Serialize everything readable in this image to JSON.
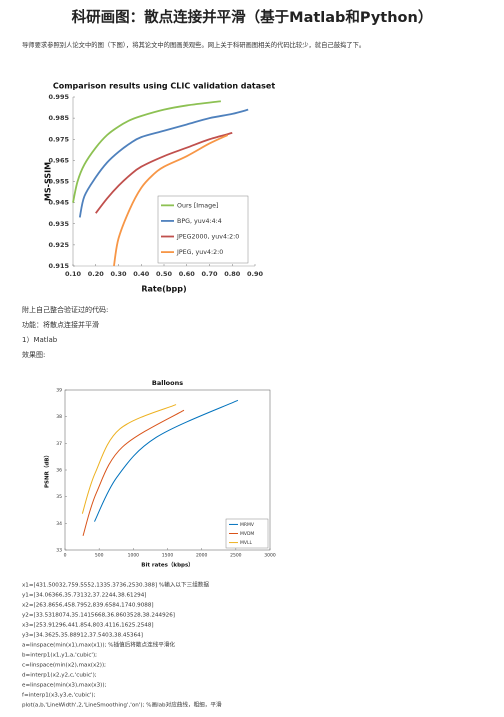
{
  "header": {
    "title": "科研画图：散点连接并平滑（基于Matlab和Python）"
  },
  "intro": "导师要求参照别人论文中的图（下图），将其论文中的图画美观些。网上关于科研画图相关的代码比较少，就自己鼓捣了下。",
  "lines": [
    "附上自己整合验证过的代码:",
    "功能：将散点连接并平滑",
    "1）Matlab",
    "效果图:"
  ],
  "code": [
    "x1=[431.50032,759.5552,1335.3736,2530.388] %输入以下三组数据",
    "y1=[34.06366,35.73132,37.2244,38.61294]",
    "x2=[263.8656,458.7952,839.6584,1740.9088]",
    "y2=[33.5318074,35.1415668,36.8603528,38.244926]",
    "x3=[253.91296,441.854,803.4116,1625.2548]",
    "y3=[34.3625,35.88912,37.5403,38.45364]",
    "a=linspace(min(x1),max(x1)); %插值后将散点连线平滑化",
    "b=interp1(x1,y1,a,'cubic');",
    "c=linspace(min(x2),max(x2));",
    "d=interp1(x2,y2,c,'cubic');",
    "e=linspace(min(x3),max(x3));",
    "f=interp1(x3,y3,e,'cubic');",
    "plot(a,b,'LineWidth',2,'LineSmoothing','on'); %画lab对应曲线，粗细，平滑"
  ],
  "chart_data": [
    {
      "type": "line",
      "title": "Comparison results using CLIC validation dataset",
      "xlabel": "Rate(bpp)",
      "ylabel": "MS-SSIM",
      "xlim": [
        0.1,
        0.9
      ],
      "xticks": [
        {
          "value": 0.1,
          "label": "0.10"
        },
        {
          "value": 0.2,
          "label": "0.20"
        },
        {
          "value": 0.3,
          "label": "0.30"
        },
        {
          "value": 0.4,
          "label": "0.40"
        },
        {
          "value": 0.5,
          "label": "0.50"
        },
        {
          "value": 0.6,
          "label": "0.60"
        },
        {
          "value": 0.7,
          "label": "0.70"
        },
        {
          "value": 0.8,
          "label": "0.80"
        },
        {
          "value": 0.9,
          "label": "0.90"
        }
      ],
      "ylim": [
        0.915,
        0.995
      ],
      "yticks": [
        0.915,
        0.925,
        0.935,
        0.945,
        0.955,
        0.965,
        0.975,
        0.985,
        0.995
      ],
      "legend": "lower right",
      "series": [
        {
          "name": "Ours [Image]",
          "color": "#8dc153",
          "x": [
            0.1,
            0.12,
            0.15,
            0.2,
            0.25,
            0.3,
            0.35,
            0.4,
            0.5,
            0.6,
            0.75
          ],
          "values": [
            0.945,
            0.955,
            0.963,
            0.971,
            0.977,
            0.981,
            0.984,
            0.986,
            0.989,
            0.991,
            0.993
          ]
        },
        {
          "name": "BPG, yuv4:4:4",
          "color": "#4f81bd",
          "x": [
            0.13,
            0.15,
            0.2,
            0.25,
            0.3,
            0.35,
            0.4,
            0.5,
            0.6,
            0.7,
            0.8,
            0.87
          ],
          "values": [
            0.938,
            0.948,
            0.957,
            0.964,
            0.969,
            0.973,
            0.976,
            0.979,
            0.982,
            0.985,
            0.987,
            0.989
          ]
        },
        {
          "name": "JPEG2000, yuv4:2:0",
          "color": "#c0504d",
          "x": [
            0.2,
            0.25,
            0.3,
            0.35,
            0.4,
            0.5,
            0.6,
            0.7,
            0.8
          ],
          "values": [
            0.94,
            0.947,
            0.953,
            0.958,
            0.962,
            0.967,
            0.971,
            0.975,
            0.978
          ]
        },
        {
          "name": "JPEG, yuv4:2:0",
          "color": "#f79646",
          "x": [
            0.28,
            0.3,
            0.35,
            0.4,
            0.45,
            0.5,
            0.6,
            0.7,
            0.78
          ],
          "values": [
            0.915,
            0.928,
            0.942,
            0.952,
            0.958,
            0.962,
            0.967,
            0.973,
            0.977
          ]
        }
      ]
    },
    {
      "type": "line",
      "title": "Balloons",
      "xlabel": "Bit rates（kbps）",
      "ylabel": "PSNR（dB）",
      "xlim": [
        0,
        3000
      ],
      "xticks": [
        0,
        500,
        1000,
        1500,
        2000,
        2500,
        3000
      ],
      "ylim": [
        33,
        39
      ],
      "yticks": [
        33,
        34,
        35,
        36,
        37,
        38,
        39
      ],
      "legend": "lower right",
      "series": [
        {
          "name": "MRMV",
          "color": "#0072bd",
          "x": [
            431.50032,
            759.5552,
            1335.3736,
            2530.388
          ],
          "values": [
            34.06366,
            35.73132,
            37.2244,
            38.61294
          ]
        },
        {
          "name": "MVDM",
          "color": "#d95319",
          "x": [
            263.8656,
            458.7952,
            839.6584,
            1740.9088
          ],
          "values": [
            33.5318074,
            35.1415668,
            36.8603528,
            38.244926
          ]
        },
        {
          "name": "MVLL",
          "color": "#edb120",
          "x": [
            253.91296,
            441.854,
            803.4116,
            1625.2548
          ],
          "values": [
            34.3625,
            35.88912,
            37.5403,
            38.45364
          ]
        }
      ]
    }
  ]
}
